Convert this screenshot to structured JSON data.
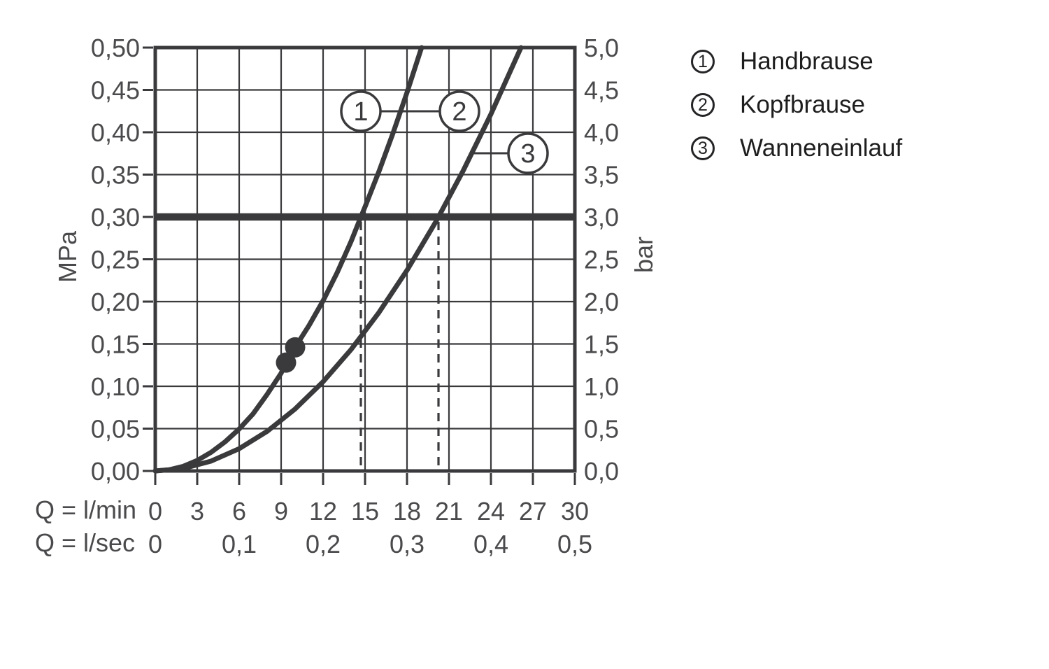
{
  "colors": {
    "ink": "#3a3a3c",
    "tick_text": "#4a4a4c",
    "legend_text": "#1e1e1e",
    "background": "#ffffff"
  },
  "axis_unit_labels": {
    "y_left": "MPa",
    "y_right": "bar",
    "x_row1": "Q = l/min",
    "x_row2": "Q = l/sec"
  },
  "legend": {
    "items": [
      {
        "number": "1",
        "label": "Handbrause"
      },
      {
        "number": "2",
        "label": "Kopfbrause"
      },
      {
        "number": "3",
        "label": "Wanneneinlauf"
      }
    ]
  },
  "chart_data": {
    "type": "line",
    "title": "",
    "xlabel_primary": "Q = l/min",
    "xlabel_secondary": "Q = l/sec",
    "ylabel_left": "MPa",
    "ylabel_right": "bar",
    "x_range_lmin": [
      0,
      30
    ],
    "y_range_mpa": [
      0,
      0.5
    ],
    "grid": true,
    "x_ticks_lmin": [
      {
        "q": 0,
        "label": "0"
      },
      {
        "q": 3,
        "label": "3"
      },
      {
        "q": 6,
        "label": "6"
      },
      {
        "q": 9,
        "label": "9"
      },
      {
        "q": 12,
        "label": "12"
      },
      {
        "q": 15,
        "label": "15"
      },
      {
        "q": 18,
        "label": "18"
      },
      {
        "q": 21,
        "label": "21"
      },
      {
        "q": 24,
        "label": "24"
      },
      {
        "q": 27,
        "label": "27"
      },
      {
        "q": 30,
        "label": "30"
      }
    ],
    "x_ticks_lsec": [
      {
        "q": 0,
        "label": "0"
      },
      {
        "q": 6,
        "label": "0,1"
      },
      {
        "q": 12,
        "label": "0,2"
      },
      {
        "q": 18,
        "label": "0,3"
      },
      {
        "q": 24,
        "label": "0,4"
      },
      {
        "q": 30,
        "label": "0,5"
      }
    ],
    "y_ticks_left_mpa": [
      {
        "p": 0.0,
        "label": "0,00"
      },
      {
        "p": 0.05,
        "label": "0,05"
      },
      {
        "p": 0.1,
        "label": "0,10"
      },
      {
        "p": 0.15,
        "label": "0,15"
      },
      {
        "p": 0.2,
        "label": "0,20"
      },
      {
        "p": 0.25,
        "label": "0,25"
      },
      {
        "p": 0.3,
        "label": "0,30"
      },
      {
        "p": 0.35,
        "label": "0,35"
      },
      {
        "p": 0.4,
        "label": "0,40"
      },
      {
        "p": 0.45,
        "label": "0,45"
      },
      {
        "p": 0.5,
        "label": "0,50"
      }
    ],
    "y_ticks_right_bar": [
      {
        "p": 0.0,
        "label": "0,0"
      },
      {
        "p": 0.05,
        "label": "0,5"
      },
      {
        "p": 0.1,
        "label": "1,0"
      },
      {
        "p": 0.15,
        "label": "1,5"
      },
      {
        "p": 0.2,
        "label": "2,0"
      },
      {
        "p": 0.25,
        "label": "2,5"
      },
      {
        "p": 0.3,
        "label": "3,0"
      },
      {
        "p": 0.35,
        "label": "3,5"
      },
      {
        "p": 0.4,
        "label": "4,0"
      },
      {
        "p": 0.45,
        "label": "4,5"
      },
      {
        "p": 0.5,
        "label": "5,0"
      }
    ],
    "reference_line": {
      "p_mpa": 0.3,
      "equivalent_bar": 3.0
    },
    "dashed_guides": [
      {
        "q_lmin": 14.7,
        "p_from": 0.3,
        "p_to": 0
      },
      {
        "q_lmin": 20.25,
        "p_from": 0.3,
        "p_to": 0
      }
    ],
    "series": [
      {
        "id": "curve-1-2",
        "name": "Handbrause / Kopfbrause",
        "callout_numbers": [
          "1",
          "2"
        ],
        "points_q_p": [
          [
            0,
            0
          ],
          [
            1,
            0.0014
          ],
          [
            2,
            0.0055
          ],
          [
            3,
            0.0124
          ],
          [
            4,
            0.0221
          ],
          [
            5,
            0.0345
          ],
          [
            6,
            0.0496
          ],
          [
            7,
            0.0676
          ],
          [
            8,
            0.0905
          ],
          [
            9,
            0.1155
          ],
          [
            9.35,
            0.128
          ],
          [
            10,
            0.146
          ],
          [
            11,
            0.172
          ],
          [
            12,
            0.201
          ],
          [
            13,
            0.234
          ],
          [
            14,
            0.271
          ],
          [
            14.7,
            0.3
          ],
          [
            15,
            0.312
          ],
          [
            16,
            0.354
          ],
          [
            17,
            0.399
          ],
          [
            18,
            0.447
          ],
          [
            19,
            0.498
          ],
          [
            19.05,
            0.5
          ]
        ]
      },
      {
        "id": "curve-3",
        "name": "Wanneneinlauf",
        "callout_numbers": [
          "3"
        ],
        "points_q_p": [
          [
            0,
            0
          ],
          [
            2,
            0.0029
          ],
          [
            4,
            0.0117
          ],
          [
            6,
            0.0263
          ],
          [
            8,
            0.0468
          ],
          [
            10,
            0.0732
          ],
          [
            12,
            0.1054
          ],
          [
            14,
            0.1434
          ],
          [
            16,
            0.1873
          ],
          [
            18,
            0.237
          ],
          [
            20,
            0.2926
          ],
          [
            20.25,
            0.3
          ],
          [
            22,
            0.3541
          ],
          [
            24,
            0.4214
          ],
          [
            26,
            0.4946
          ],
          [
            26.15,
            0.5
          ]
        ]
      }
    ],
    "markers_on_curve_1_2": [
      {
        "q": 9.35,
        "p": 0.128
      },
      {
        "q": 10.0,
        "p": 0.146
      }
    ],
    "callouts": [
      {
        "number": "1",
        "q": 14.7,
        "p": 0.4248
      },
      {
        "number": "2",
        "q": 21.75,
        "p": 0.4248
      },
      {
        "number": "3",
        "q": 26.65,
        "p": 0.3752
      }
    ],
    "callout_connectors": [
      {
        "p": 0.4248,
        "q_from": 16.1,
        "q_to": 20.35
      },
      {
        "p": 0.3752,
        "q_from": 22.6,
        "q_to": 25.25
      }
    ]
  }
}
